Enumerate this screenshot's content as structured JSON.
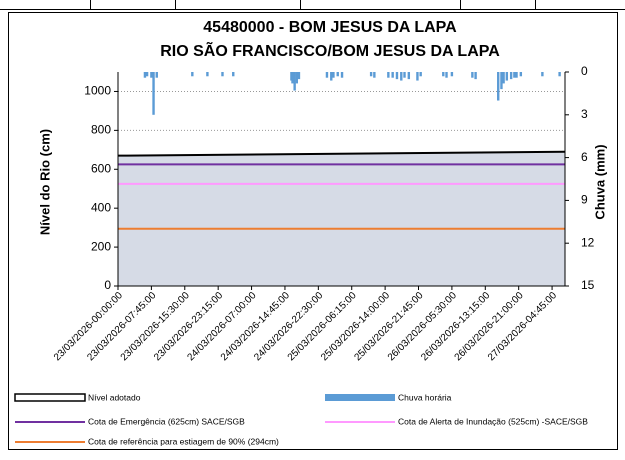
{
  "chart_data": {
    "type": "area",
    "title": "45480000 - BOM JESUS DA LAPA",
    "subtitle": "RIO SÃO FRANCISCO/BOM JESUS DA LAPA",
    "y_label": "Nível do Rio (cm)",
    "y2_label": "Chuva (mm)",
    "xlim": [
      0,
      103.75
    ],
    "xticks": [
      {
        "value": 0,
        "label": "23/03/2026-00:00:00"
      },
      {
        "value": 7.75,
        "label": "23/03/2026-07:45:00"
      },
      {
        "value": 15.5,
        "label": "23/03/2026-15:30:00"
      },
      {
        "value": 23.25,
        "label": "23/03/2026-23:15:00"
      },
      {
        "value": 31,
        "label": "24/03/2026-07:00:00"
      },
      {
        "value": 38.75,
        "label": "24/03/2026-14:45:00"
      },
      {
        "value": 46.5,
        "label": "24/03/2026-22:30:00"
      },
      {
        "value": 54.25,
        "label": "25/03/2026-06:15:00"
      },
      {
        "value": 62,
        "label": "25/03/2026-14:00:00"
      },
      {
        "value": 69.75,
        "label": "25/03/2026-21:45:00"
      },
      {
        "value": 77.5,
        "label": "26/03/2026-05:30:00"
      },
      {
        "value": 85.25,
        "label": "26/03/2026-13:15:00"
      },
      {
        "value": 93,
        "label": "26/03/2026-21:00:00"
      },
      {
        "value": 100.75,
        "label": "27/03/2026-04:45:00"
      }
    ],
    "ylim": [
      0,
      1100
    ],
    "yticks": [
      0,
      200,
      400,
      600,
      800,
      1000
    ],
    "y2lim": [
      0,
      15
    ],
    "y2ticks": [
      0,
      3,
      6,
      9,
      12,
      15
    ],
    "y2_inverted": true,
    "grid": true,
    "series": [
      {
        "name": "Nível adotado",
        "type": "area",
        "color": "#d6dbe6",
        "line_color": "#000000",
        "x": [
          0,
          103.75
        ],
        "values": [
          670,
          690
        ]
      },
      {
        "name": "Chuva horária",
        "type": "bar",
        "axis": "y2",
        "color": "#5b9bd5",
        "x": [
          6.25,
          6.75,
          7.75,
          8.25,
          9,
          17.25,
          20.75,
          24.25,
          26.75,
          40.25,
          40.5,
          41,
          41.5,
          42,
          48.5,
          49.5,
          50,
          51,
          52,
          58.75,
          59.5,
          62.75,
          63.75,
          64.75,
          65.75,
          66.5,
          67.5,
          69.5,
          70.25,
          75.5,
          76.25,
          77.5,
          82.25,
          83,
          88.25,
          89,
          89.5,
          90.25,
          91.25,
          92,
          92.5,
          93.5,
          98.5,
          102.5
        ],
        "values": [
          0.4,
          0.3,
          0.4,
          3.0,
          0.4,
          0.3,
          0.3,
          0.3,
          0.3,
          0.6,
          0.8,
          1.3,
          0.8,
          0.5,
          0.4,
          0.6,
          0.4,
          0.3,
          0.4,
          0.3,
          0.4,
          0.4,
          0.4,
          0.5,
          0.6,
          0.4,
          0.5,
          0.6,
          0.3,
          0.3,
          0.4,
          0.3,
          0.4,
          0.5,
          2.0,
          1.2,
          0.8,
          0.6,
          0.5,
          0.4,
          0.4,
          0.3,
          0.3,
          0.3
        ]
      }
    ],
    "reference_lines": [
      {
        "name": "Cota de Emergência   (625cm) SACE/SGB",
        "value": 625,
        "color": "#7030a0"
      },
      {
        "name": "Cota de Alerta  de Inundação (525cm) -SACE/SGB",
        "value": 525,
        "color": "#ff99ff"
      },
      {
        "name": "Cota de referência para estiagem de 90% (294cm)",
        "value": 294,
        "color": "#ed7d31"
      }
    ]
  }
}
